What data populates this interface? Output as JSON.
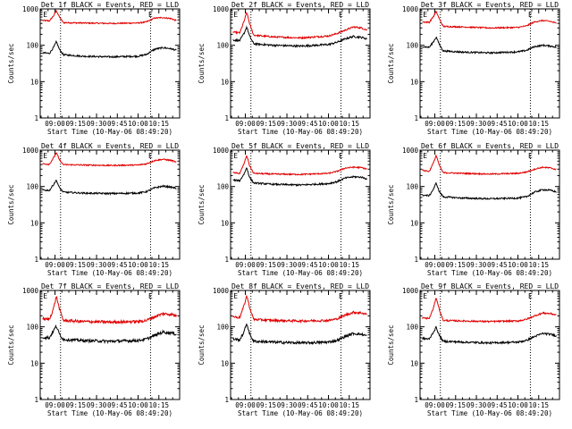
{
  "chart_data": {
    "type": "line",
    "y_scale": "log",
    "ylim": [
      1,
      1000
    ],
    "y_ticks": [
      "1000",
      "100",
      "10",
      "1"
    ],
    "ylabel": "Counts/sec",
    "xlabel": "Start Time (10-May-06 08:49:20)",
    "x_ticks": [
      "09:00",
      "09:15",
      "09:30",
      "09:45",
      "10:00",
      "10:15"
    ],
    "x_tick_minutes": [
      540,
      555,
      570,
      585,
      600,
      615
    ],
    "x_range_minutes": [
      529.33,
      630
    ],
    "markers": [
      "E",
      "E"
    ],
    "marker_minutes": [
      533,
      609
    ],
    "dotted_line_minutes": [
      544,
      609
    ],
    "series_names": [
      "Events",
      "LLD"
    ],
    "series_colors": {
      "Events": "#000000",
      "LLD": "#e00000"
    },
    "panels": [
      {
        "title": "Det 1f BLACK = Events, RED = LLD",
        "series": [
          {
            "name": "LLD",
            "color": "#e00000",
            "noise": 0.04,
            "x": [
              531,
              536,
              539,
              541,
              543,
              546,
              560,
              580,
              600,
              606,
              612,
              618,
              624,
              628
            ],
            "y": [
              480,
              470,
              650,
              900,
              620,
              420,
              410,
              400,
              410,
              440,
              560,
              580,
              540,
              470
            ]
          },
          {
            "name": "Events",
            "color": "#000000",
            "noise": 0.05,
            "x": [
              531,
              536,
              539,
              541,
              543,
              546,
              560,
              580,
              600,
              606,
              612,
              618,
              624,
              628
            ],
            "y": [
              62,
              60,
              88,
              125,
              80,
              55,
              50,
              48,
              50,
              56,
              78,
              86,
              80,
              72
            ]
          }
        ]
      },
      {
        "title": "Det 2f BLACK = Events, RED = LLD",
        "series": [
          {
            "name": "LLD",
            "color": "#e00000",
            "noise": 0.05,
            "x": [
              531,
              536,
              539,
              541,
              543,
              546,
              560,
              580,
              600,
              606,
              612,
              618,
              624,
              628
            ],
            "y": [
              230,
              220,
              450,
              800,
              400,
              190,
              170,
              160,
              180,
              210,
              260,
              320,
              300,
              260
            ]
          },
          {
            "name": "Events",
            "color": "#000000",
            "noise": 0.06,
            "x": [
              531,
              536,
              539,
              541,
              543,
              546,
              560,
              580,
              600,
              606,
              612,
              618,
              624,
              628
            ],
            "y": [
              140,
              135,
              210,
              320,
              180,
              110,
              100,
              95,
              105,
              120,
              150,
              175,
              165,
              150
            ]
          }
        ]
      },
      {
        "title": "Det 3f BLACK = Events, RED = LLD",
        "series": [
          {
            "name": "LLD",
            "color": "#e00000",
            "noise": 0.04,
            "x": [
              531,
              536,
              539,
              541,
              543,
              546,
              560,
              580,
              600,
              606,
              612,
              618,
              624,
              628
            ],
            "y": [
              440,
              430,
              620,
              850,
              560,
              330,
              320,
              300,
              310,
              340,
              440,
              480,
              450,
              400
            ]
          },
          {
            "name": "Events",
            "color": "#000000",
            "noise": 0.05,
            "x": [
              531,
              536,
              539,
              541,
              543,
              546,
              560,
              580,
              600,
              606,
              612,
              618,
              624,
              628
            ],
            "y": [
              92,
              88,
              125,
              170,
              110,
              70,
              65,
              62,
              66,
              72,
              92,
              100,
              95,
              88
            ]
          }
        ]
      },
      {
        "title": "Det 4f BLACK = Events, RED = LLD",
        "series": [
          {
            "name": "LLD",
            "color": "#e00000",
            "noise": 0.04,
            "x": [
              531,
              536,
              539,
              541,
              543,
              546,
              560,
              580,
              600,
              606,
              612,
              618,
              624,
              628
            ],
            "y": [
              420,
              410,
              620,
              850,
              560,
              400,
              390,
              380,
              390,
              420,
              520,
              560,
              520,
              460
            ]
          },
          {
            "name": "Events",
            "color": "#000000",
            "noise": 0.05,
            "x": [
              531,
              536,
              539,
              541,
              543,
              546,
              560,
              580,
              600,
              606,
              612,
              618,
              624,
              628
            ],
            "y": [
              80,
              78,
              115,
              150,
              95,
              70,
              66,
              64,
              66,
              72,
              92,
              102,
              96,
              88
            ]
          }
        ]
      },
      {
        "title": "Det 5f BLACK = Events, RED = LLD",
        "series": [
          {
            "name": "LLD",
            "color": "#e00000",
            "noise": 0.04,
            "x": [
              531,
              536,
              539,
              541,
              543,
              546,
              560,
              580,
              600,
              606,
              612,
              618,
              624,
              628
            ],
            "y": [
              240,
              230,
              420,
              720,
              380,
              230,
              220,
              215,
              230,
              260,
              320,
              340,
              330,
              300
            ]
          },
          {
            "name": "Events",
            "color": "#000000",
            "noise": 0.05,
            "x": [
              531,
              536,
              539,
              541,
              543,
              546,
              560,
              580,
              600,
              606,
              612,
              618,
              624,
              628
            ],
            "y": [
              150,
              145,
              220,
              330,
              180,
              125,
              115,
              110,
              120,
              135,
              170,
              185,
              180,
              160
            ]
          }
        ]
      },
      {
        "title": "Det 6f BLACK = Events, RED = LLD",
        "series": [
          {
            "name": "LLD",
            "color": "#e00000",
            "noise": 0.04,
            "x": [
              531,
              536,
              539,
              541,
              543,
              546,
              560,
              580,
              600,
              606,
              612,
              618,
              624,
              628
            ],
            "y": [
              280,
              260,
              450,
              720,
              400,
              240,
              230,
              220,
              230,
              250,
              300,
              340,
              320,
              290
            ]
          },
          {
            "name": "Events",
            "color": "#000000",
            "noise": 0.05,
            "x": [
              531,
              536,
              539,
              541,
              543,
              546,
              560,
              580,
              600,
              606,
              612,
              618,
              624,
              628
            ],
            "y": [
              58,
              56,
              85,
              125,
              75,
              52,
              48,
              46,
              48,
              52,
              70,
              82,
              78,
              70
            ]
          }
        ]
      },
      {
        "title": "Det 7f BLACK = Events, RED = LLD",
        "series": [
          {
            "name": "LLD",
            "color": "#e00000",
            "noise": 0.09,
            "x": [
              531,
              536,
              539,
              541,
              543,
              546,
              560,
              580,
              600,
              606,
              612,
              618,
              624,
              628
            ],
            "y": [
              165,
              160,
              330,
              700,
              330,
              150,
              140,
              135,
              140,
              150,
              190,
              230,
              220,
              200
            ]
          },
          {
            "name": "Events",
            "color": "#000000",
            "noise": 0.09,
            "x": [
              531,
              536,
              539,
              541,
              543,
              546,
              560,
              580,
              600,
              606,
              612,
              618,
              624,
              628
            ],
            "y": [
              52,
              50,
              80,
              105,
              65,
              45,
              42,
              40,
              42,
              46,
              58,
              72,
              68,
              62
            ]
          }
        ]
      },
      {
        "title": "Det 8f BLACK = Events, RED = LLD",
        "series": [
          {
            "name": "LLD",
            "color": "#e00000",
            "noise": 0.07,
            "x": [
              531,
              536,
              539,
              541,
              543,
              546,
              560,
              580,
              600,
              606,
              612,
              618,
              624,
              628
            ],
            "y": [
              190,
              180,
              380,
              720,
              350,
              160,
              150,
              145,
              150,
              165,
              210,
              250,
              240,
              220
            ]
          },
          {
            "name": "Events",
            "color": "#000000",
            "noise": 0.08,
            "x": [
              531,
              536,
              539,
              541,
              543,
              546,
              560,
              580,
              600,
              606,
              612,
              618,
              624,
              628
            ],
            "y": [
              46,
              44,
              72,
              125,
              65,
              40,
              38,
              36,
              38,
              42,
              54,
              66,
              62,
              56
            ]
          }
        ]
      },
      {
        "title": "Det 9f BLACK = Events, RED = LLD",
        "series": [
          {
            "name": "LLD",
            "color": "#e00000",
            "noise": 0.05,
            "x": [
              531,
              536,
              539,
              541,
              543,
              546,
              560,
              580,
              600,
              606,
              612,
              618,
              624,
              628
            ],
            "y": [
              175,
              170,
              330,
              650,
              320,
              150,
              145,
              140,
              145,
              160,
              200,
              240,
              230,
              210
            ]
          },
          {
            "name": "Events",
            "color": "#000000",
            "noise": 0.06,
            "x": [
              531,
              536,
              539,
              541,
              543,
              546,
              560,
              580,
              600,
              606,
              612,
              618,
              624,
              628
            ],
            "y": [
              48,
              46,
              72,
              98,
              60,
              40,
              38,
              36,
              38,
              42,
              54,
              66,
              62,
              56
            ]
          }
        ]
      }
    ]
  }
}
